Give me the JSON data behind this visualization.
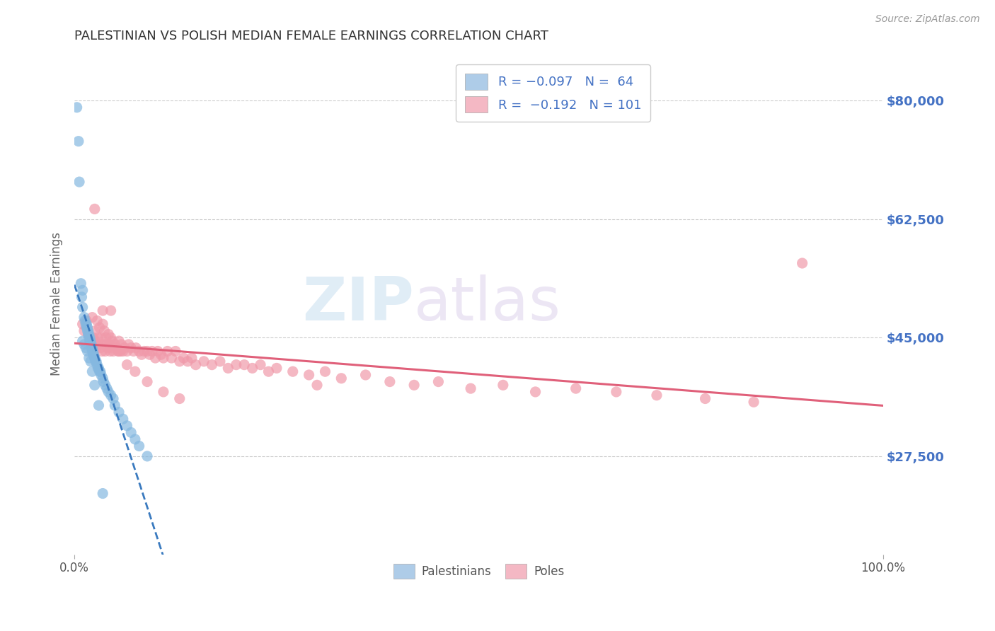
{
  "title": "PALESTINIAN VS POLISH MEDIAN FEMALE EARNINGS CORRELATION CHART",
  "source": "Source: ZipAtlas.com",
  "ylabel": "Median Female Earnings",
  "ytick_labels": [
    "$27,500",
    "$45,000",
    "$62,500",
    "$80,000"
  ],
  "ytick_values": [
    27500,
    45000,
    62500,
    80000
  ],
  "ymin": 13000,
  "ymax": 87000,
  "xmin": 0.0,
  "xmax": 1.0,
  "watermark_text": "ZIPatlas",
  "pal_color": "#85b8e0",
  "pal_trend_color": "#3a7abf",
  "pol_color": "#f09aaa",
  "pol_trend_color": "#e0607a",
  "background_color": "#ffffff",
  "grid_color": "#cccccc",
  "title_color": "#333333",
  "axis_label_color": "#666666",
  "tick_color": "#4472c4",
  "legend_patch_pal": "#aecce8",
  "legend_patch_pol": "#f4b8c4",
  "palestinians_x": [
    0.003,
    0.005,
    0.006,
    0.008,
    0.009,
    0.01,
    0.01,
    0.012,
    0.013,
    0.014,
    0.015,
    0.015,
    0.016,
    0.016,
    0.017,
    0.017,
    0.018,
    0.018,
    0.019,
    0.019,
    0.02,
    0.02,
    0.021,
    0.021,
    0.022,
    0.022,
    0.023,
    0.023,
    0.024,
    0.025,
    0.025,
    0.026,
    0.027,
    0.028,
    0.029,
    0.03,
    0.031,
    0.032,
    0.033,
    0.035,
    0.036,
    0.038,
    0.04,
    0.042,
    0.045,
    0.048,
    0.05,
    0.055,
    0.06,
    0.065,
    0.07,
    0.075,
    0.08,
    0.09,
    0.01,
    0.012,
    0.014,
    0.016,
    0.018,
    0.02,
    0.022,
    0.025,
    0.03,
    0.035
  ],
  "palestinians_y": [
    79000,
    74000,
    68000,
    53000,
    51000,
    49500,
    52000,
    48000,
    47500,
    47000,
    47000,
    46500,
    46500,
    46000,
    46000,
    45500,
    45500,
    45000,
    45000,
    44500,
    44500,
    44000,
    44000,
    43500,
    43500,
    43000,
    43000,
    42500,
    42500,
    42000,
    42000,
    41500,
    41500,
    41000,
    40500,
    40500,
    40000,
    40000,
    39500,
    39000,
    38500,
    38000,
    37500,
    37000,
    36500,
    36000,
    35000,
    34000,
    33000,
    32000,
    31000,
    30000,
    29000,
    27500,
    44500,
    44000,
    43500,
    43000,
    42000,
    41500,
    40000,
    38000,
    35000,
    22000
  ],
  "poles_x": [
    0.01,
    0.012,
    0.015,
    0.017,
    0.019,
    0.021,
    0.022,
    0.023,
    0.024,
    0.025,
    0.026,
    0.027,
    0.028,
    0.029,
    0.03,
    0.031,
    0.032,
    0.033,
    0.034,
    0.035,
    0.036,
    0.037,
    0.038,
    0.039,
    0.04,
    0.041,
    0.042,
    0.043,
    0.044,
    0.045,
    0.046,
    0.047,
    0.048,
    0.05,
    0.052,
    0.054,
    0.055,
    0.057,
    0.058,
    0.06,
    0.062,
    0.065,
    0.067,
    0.07,
    0.073,
    0.076,
    0.08,
    0.083,
    0.086,
    0.09,
    0.093,
    0.096,
    0.1,
    0.103,
    0.107,
    0.11,
    0.115,
    0.12,
    0.125,
    0.13,
    0.135,
    0.14,
    0.145,
    0.15,
    0.16,
    0.17,
    0.18,
    0.19,
    0.2,
    0.21,
    0.22,
    0.23,
    0.24,
    0.25,
    0.27,
    0.29,
    0.31,
    0.33,
    0.36,
    0.39,
    0.42,
    0.45,
    0.49,
    0.53,
    0.57,
    0.62,
    0.67,
    0.72,
    0.78,
    0.84,
    0.025,
    0.035,
    0.045,
    0.055,
    0.065,
    0.075,
    0.09,
    0.11,
    0.13,
    0.3,
    0.9
  ],
  "poles_y": [
    47000,
    46000,
    47500,
    45500,
    44500,
    44000,
    48000,
    45000,
    44000,
    46000,
    44500,
    43500,
    47500,
    45000,
    44000,
    46500,
    43500,
    45000,
    43000,
    47000,
    44000,
    46000,
    43000,
    45000,
    44000,
    43500,
    45500,
    44000,
    43000,
    45000,
    43500,
    44500,
    43000,
    44000,
    43500,
    43000,
    44500,
    43000,
    44000,
    43000,
    43500,
    43000,
    44000,
    43500,
    43000,
    43500,
    43000,
    42500,
    43000,
    43000,
    42500,
    43000,
    42000,
    43000,
    42500,
    42000,
    43000,
    42000,
    43000,
    41500,
    42000,
    41500,
    42000,
    41000,
    41500,
    41000,
    41500,
    40500,
    41000,
    41000,
    40500,
    41000,
    40000,
    40500,
    40000,
    39500,
    40000,
    39000,
    39500,
    38500,
    38000,
    38500,
    37500,
    38000,
    37000,
    37500,
    37000,
    36500,
    36000,
    35500,
    64000,
    49000,
    49000,
    43000,
    41000,
    40000,
    38500,
    37000,
    36000,
    38000,
    56000
  ]
}
